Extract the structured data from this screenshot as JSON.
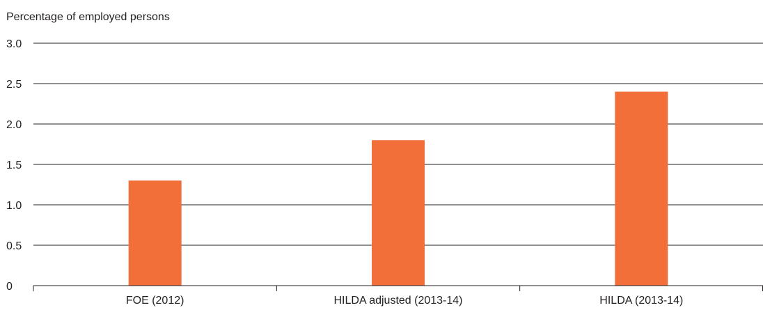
{
  "chart_data": {
    "type": "bar",
    "title": "",
    "xlabel": "",
    "ylabel": "Percentage of employed persons",
    "categories": [
      "FOE (2012)",
      "HILDA adjusted (2013-14)",
      "HILDA (2013-14)"
    ],
    "values": [
      1.3,
      1.8,
      2.4
    ],
    "ylim": [
      0,
      3.0
    ],
    "yticks": [
      0,
      0.5,
      1.0,
      1.5,
      2.0,
      2.5,
      3.0
    ],
    "ytick_labels": [
      "0",
      "0.5",
      "1.0",
      "1.5",
      "2.0",
      "2.5",
      "3.0"
    ],
    "grid": true,
    "legend": "none",
    "colors": {
      "bar": "#f26f3a",
      "gridline": "#231f20",
      "text": "#231f20"
    }
  }
}
